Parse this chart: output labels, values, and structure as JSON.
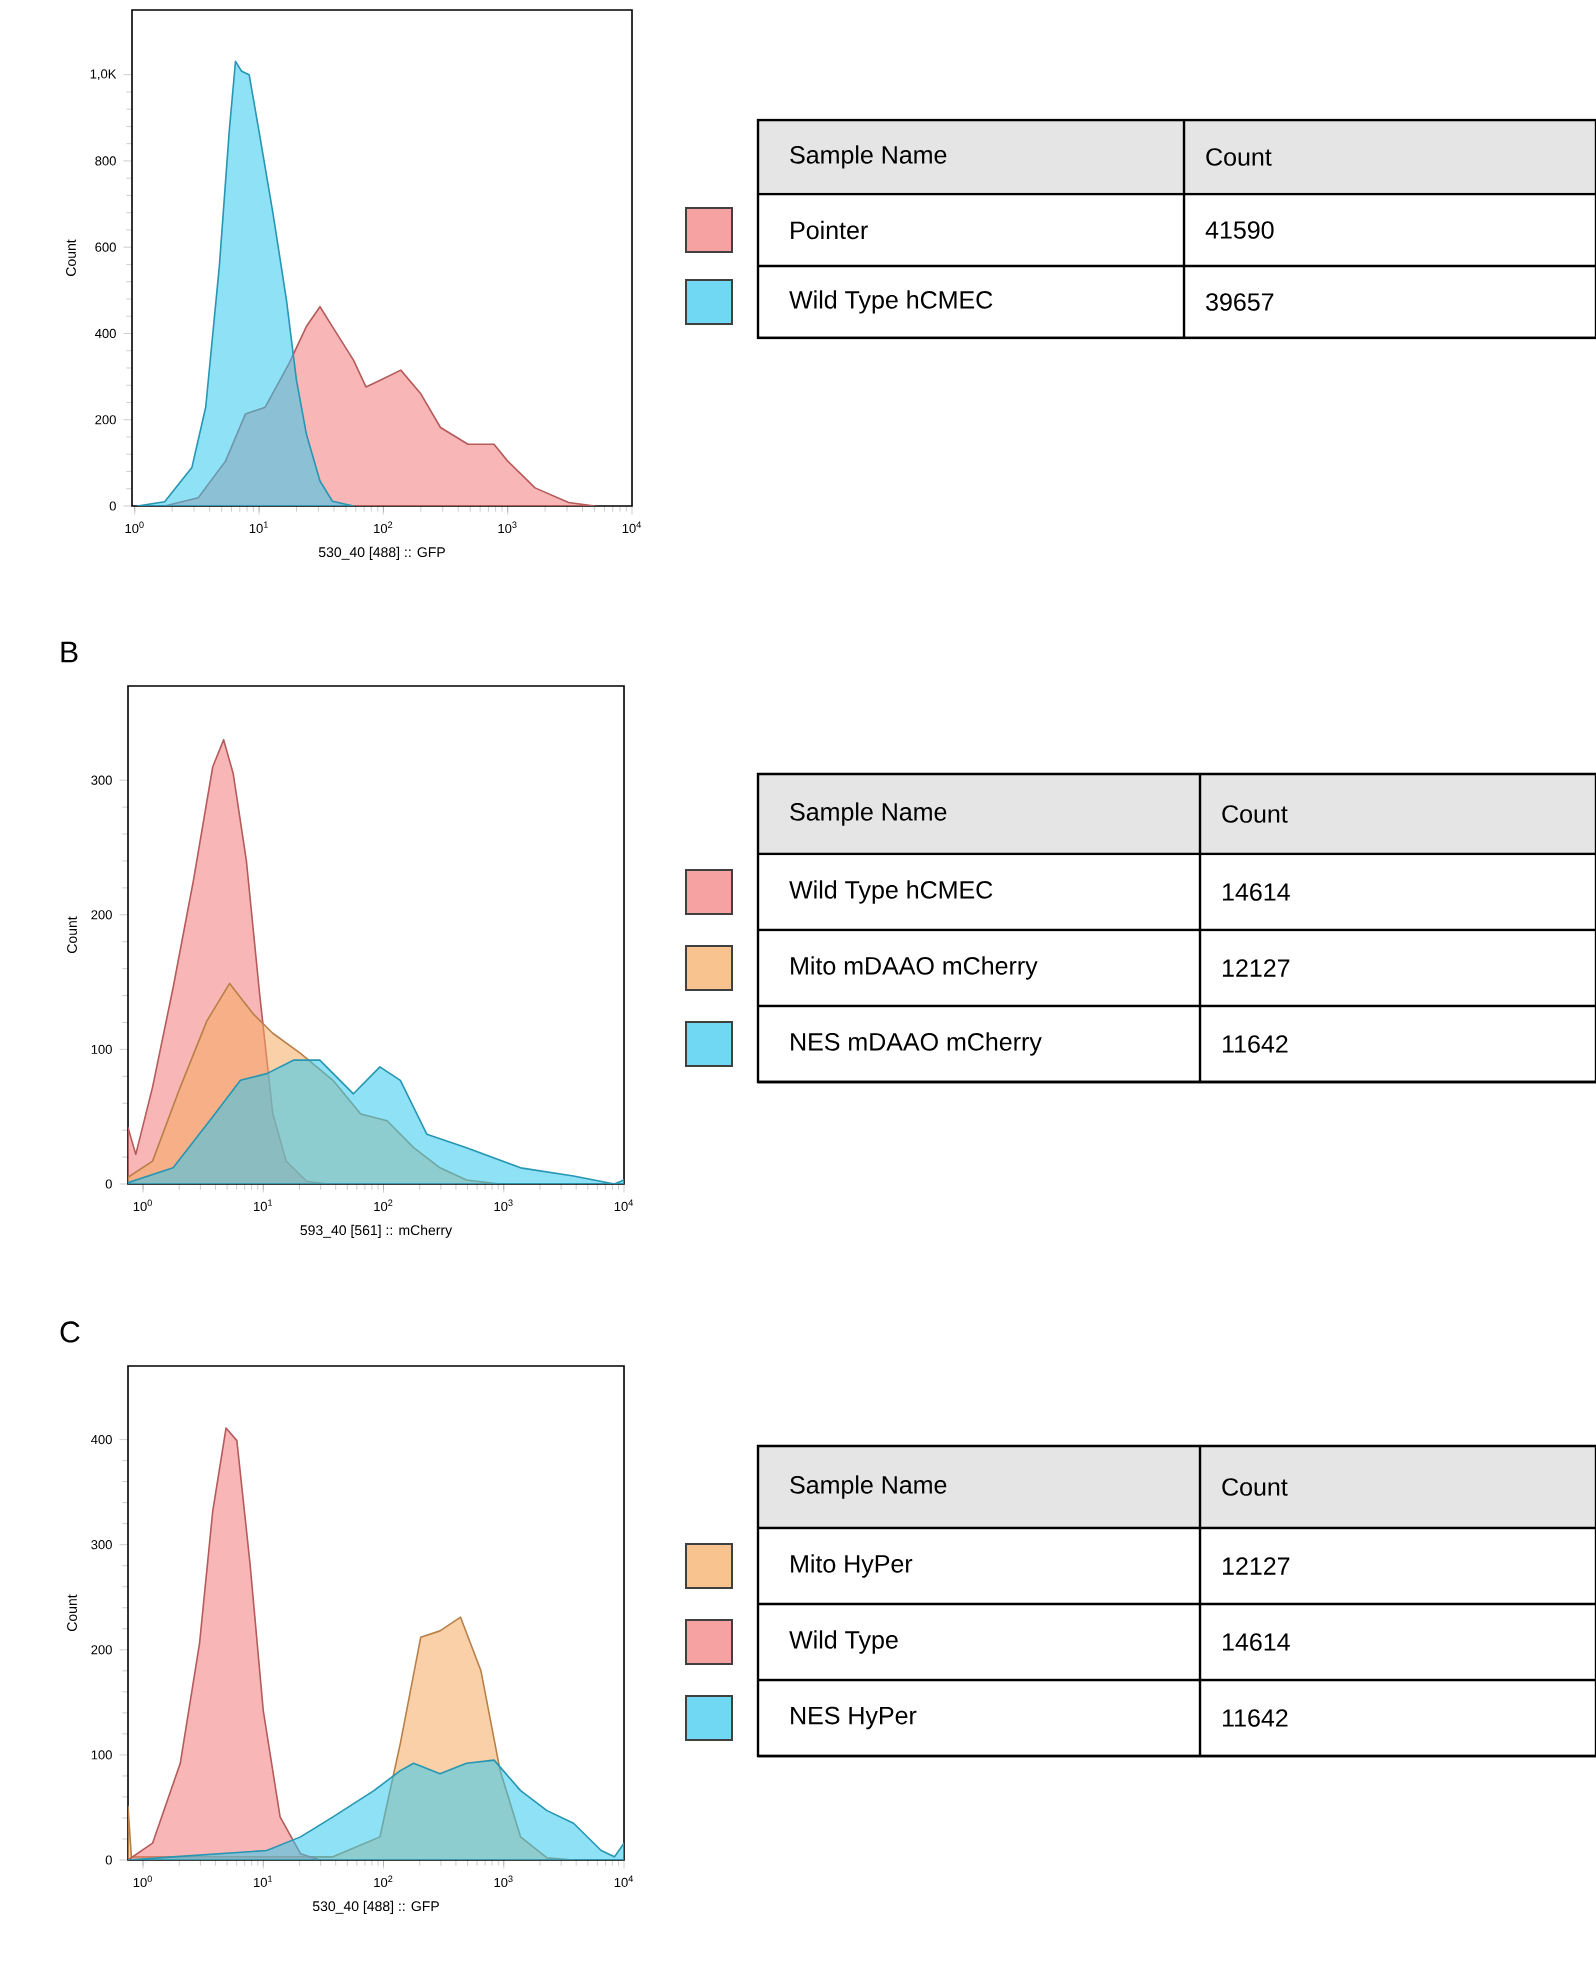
{
  "chart_data": [
    {
      "type": "area",
      "xlabel": "530_40 [488] :: GFP",
      "ylabel": "Count",
      "log": "x",
      "legend": "right",
      "legend_title": "Sample Name",
      "annotations": [
        "Count",
        "41590",
        "39657"
      ],
      "xlim": [
        0.95,
        10000
      ],
      "ylim": [
        0,
        1150
      ],
      "xticks": [
        {
          "value": 1,
          "label": "10$^{0}$"
        },
        {
          "value": 10,
          "label": "10$^{1}$"
        },
        {
          "value": 100,
          "label": "10$^{2}$"
        },
        {
          "value": 1000,
          "label": "10$^{3}$"
        },
        {
          "value": 10000,
          "label": "10$^{4}$"
        }
      ],
      "yticks": [
        0,
        200,
        400,
        600,
        800,
        {
          "value": 1000,
          "label": "1,0K"
        }
      ],
      "series": [
        {
          "name": "Pointer",
          "color": "#f27a7a",
          "x": [
            1.74,
            3.24,
            5.37,
            7.76,
            11.2,
            17.4,
            24,
            30.9,
            38.9,
            57.5,
            72.4,
            93.3,
            138,
            200,
            288,
            479,
            776,
            1000,
            1660,
            3090,
            5010
          ],
          "values": [
            0,
            19,
            104,
            213,
            229,
            330,
            416,
            462,
            416,
            338,
            276,
            291,
            315,
            260,
            182,
            143,
            143,
            104,
            42,
            8,
            0
          ]
        },
        {
          "name": "Wild Type hCMEC",
          "color": "#33c8ee",
          "x": [
            1.05,
            1.74,
            2.88,
            3.72,
            4.79,
            5.75,
            6.46,
            7.24,
            8.32,
            10,
            12.9,
            16.6,
            20,
            24,
            30.9,
            38.9,
            57.5
          ],
          "values": [
            0,
            10,
            89,
            229,
            556,
            868,
            1031,
            1008,
            1000,
            868,
            681,
            478,
            291,
            167,
            58,
            11,
            0
          ]
        }
      ]
    },
    {
      "type": "area",
      "title": "B",
      "xlabel": "593_40 [561] :: mCherry",
      "ylabel": "Count",
      "log": "x",
      "legend": "right",
      "legend_title": "Sample Name",
      "annotations": [
        "Count",
        "14614",
        "12127",
        "11642"
      ],
      "xlim": [
        0.75,
        10000
      ],
      "ylim": [
        0,
        370
      ],
      "xticks": [
        {
          "value": 1,
          "label": "10$^{0}$"
        },
        {
          "value": 10,
          "label": "10$^{1}$"
        },
        {
          "value": 100,
          "label": "10$^{2}$"
        },
        {
          "value": 1000,
          "label": "10$^{3}$"
        },
        {
          "value": 10000,
          "label": "10$^{4}$"
        }
      ],
      "yticks": [
        0,
        100,
        200,
        300
      ],
      "series": [
        {
          "name": "Wild Type hCMEC",
          "color": "#f27a7a",
          "x": [
            0.75,
            0.87,
            1.2,
            1.78,
            2.63,
            3.8,
            4.68,
            5.62,
            7.24,
            9.33,
            12,
            15.5,
            22.9,
            33.9
          ],
          "values": [
            42,
            22,
            72,
            146,
            226,
            310,
            330,
            305,
            240,
            141,
            52,
            17,
            2,
            0
          ]
        },
        {
          "name": "Mito mDAAO mCherry",
          "color": "#f5aa60",
          "x": [
            0.75,
            1.2,
            2.04,
            3.39,
            5.25,
            8.32,
            12,
            20.4,
            38,
            64.6,
            107,
            178,
            295,
            490,
            933
          ],
          "values": [
            5,
            17,
            72,
            121,
            149,
            126,
            112,
            97,
            77,
            52,
            47,
            27,
            12,
            3,
            0
          ]
        },
        {
          "name": "NES mDAAO mCherry",
          "color": "#33c8ee",
          "x": [
            0.75,
            1.78,
            3.8,
            6.46,
            10.7,
            17.8,
            29.5,
            56.2,
            93.3,
            138,
            229,
            490,
            1380,
            3800,
            8320,
            10000
          ],
          "values": [
            1,
            12,
            50,
            77,
            82,
            92,
            92,
            67,
            87,
            77,
            37,
            27,
            12,
            6,
            0,
            3
          ]
        }
      ]
    },
    {
      "type": "area",
      "title": "C",
      "xlabel": "530_40 [488] :: GFP",
      "ylabel": "Count",
      "log": "x",
      "legend": "right",
      "legend_title": "Sample Name",
      "annotations": [
        "Count",
        "12127",
        "14614",
        "11642"
      ],
      "xlim": [
        0.75,
        10000
      ],
      "ylim": [
        0,
        470
      ],
      "xticks": [
        {
          "value": 1,
          "label": "10$^{0}$"
        },
        {
          "value": 10,
          "label": "10$^{1}$"
        },
        {
          "value": 100,
          "label": "10$^{2}$"
        },
        {
          "value": 1000,
          "label": "10$^{3}$"
        },
        {
          "value": 10000,
          "label": "10$^{4}$"
        }
      ],
      "yticks": [
        0,
        100,
        200,
        300,
        400
      ],
      "series": [
        {
          "name": "Mito HyPer",
          "color": "#f5aa60",
          "x": [
            0.75,
            0.8,
            38,
            93.3,
            138,
            204,
            295,
            437,
            646,
            933,
            1380,
            2290,
            3800
          ],
          "values": [
            51,
            3,
            3,
            22,
            111,
            212,
            218,
            231,
            180,
            85,
            22,
            2,
            0
          ]
        },
        {
          "name": "Wild Type",
          "color": "#f27a7a",
          "x": [
            0.75,
            1.2,
            2.04,
            2.95,
            3.8,
            4.9,
            6.03,
            7.76,
            10,
            13.8,
            20.4,
            29.5
          ],
          "values": [
            0,
            16,
            92,
            206,
            332,
            411,
            399,
            282,
            142,
            41,
            6,
            0
          ]
        },
        {
          "name": "NES HyPer",
          "color": "#33c8ee",
          "x": [
            0.75,
            1.78,
            10.7,
            20.4,
            38,
            83.2,
            138,
            178,
            295,
            490,
            832,
            1380,
            2290,
            3800,
            6460,
            8320,
            10000
          ],
          "values": [
            0,
            3,
            9,
            22,
            41,
            66,
            85,
            92,
            82,
            92,
            95,
            66,
            47,
            35,
            9,
            3,
            16
          ]
        }
      ]
    }
  ]
}
